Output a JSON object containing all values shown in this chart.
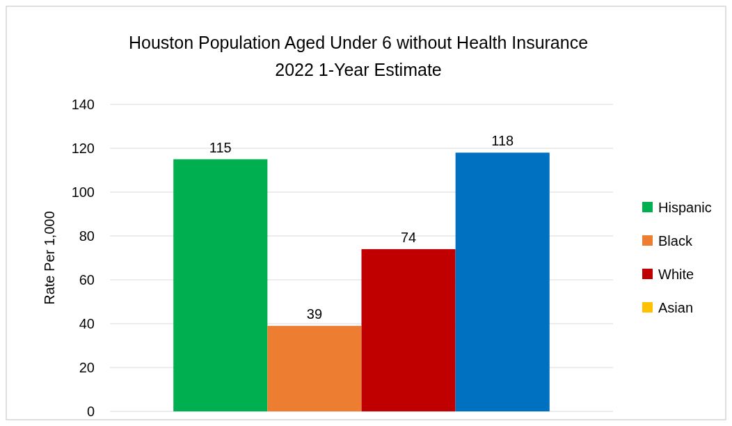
{
  "chart_data": {
    "type": "bar",
    "title": "Houston Population Aged Under 6 without Health Insurance",
    "subtitle": "2022 1-Year Estimate",
    "ylabel": "Rate Per 1,000",
    "categories": [
      null
    ],
    "series": [
      {
        "name": "Hispanic",
        "color": "#00b050",
        "values": [
          115
        ]
      },
      {
        "name": "Black",
        "color": "#ed7d31",
        "values": [
          39
        ]
      },
      {
        "name": "White",
        "color": "#c00000",
        "values": [
          74
        ]
      },
      {
        "color": "#0070c0",
        "values": [
          118
        ]
      },
      {
        "name": "Asian",
        "color": "#ffc000",
        "values": [
          null
        ]
      }
    ],
    "ylim": [
      0,
      140
    ],
    "yticks": [
      0,
      20,
      40,
      60,
      80,
      100,
      120,
      140
    ],
    "grid": "y",
    "legend": "right",
    "data_labels": true
  }
}
